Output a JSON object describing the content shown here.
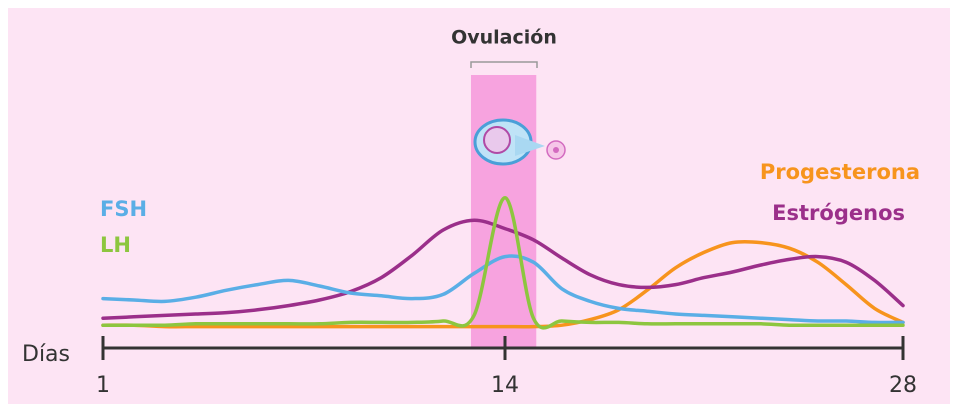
{
  "chart_data": {
    "type": "line",
    "x_label": "Días",
    "x": [
      1,
      2,
      3,
      4,
      5,
      6,
      7,
      8,
      9,
      10,
      11,
      12,
      13,
      14,
      15,
      16,
      17,
      18,
      19,
      20,
      21,
      22,
      23,
      24,
      25,
      26,
      27,
      28
    ],
    "xlim": [
      1,
      28
    ],
    "xticks": [
      1,
      14,
      28
    ],
    "ylim": [
      0,
      100
    ],
    "ovulation": {
      "label": "Ovulación",
      "range": [
        12.9,
        15.1
      ],
      "color": "#f7a3df"
    },
    "series": [
      {
        "name": "FSH",
        "color": "#5aaee6",
        "values": [
          26,
          25,
          24,
          27,
          32,
          36,
          39,
          35,
          30,
          28,
          26,
          29,
          44,
          56,
          52,
          33,
          24,
          19,
          17,
          15,
          14,
          13,
          12,
          11,
          10,
          10,
          9,
          9
        ]
      },
      {
        "name": "LH",
        "color": "#8dc63f",
        "values": [
          7,
          7,
          7,
          8,
          8,
          8,
          8,
          8,
          9,
          9,
          9,
          10,
          14,
          98,
          12,
          10,
          9,
          9,
          8,
          8,
          8,
          8,
          8,
          7,
          7,
          7,
          7,
          7
        ]
      },
      {
        "name": "Progesterona",
        "color": "#f7941d",
        "values": [
          7,
          7,
          6,
          6,
          6,
          6,
          6,
          6,
          6,
          6,
          6,
          6,
          6,
          6,
          6,
          7,
          11,
          18,
          32,
          48,
          59,
          66,
          66,
          62,
          52,
          36,
          19,
          9
        ]
      },
      {
        "name": "Estrógenos",
        "color": "#9b2f8a",
        "values": [
          12,
          13,
          14,
          15,
          16,
          18,
          21,
          25,
          31,
          41,
          57,
          75,
          82,
          76,
          68,
          55,
          43,
          36,
          34,
          36,
          41,
          45,
          50,
          54,
          56,
          52,
          39,
          21
        ]
      }
    ]
  }
}
